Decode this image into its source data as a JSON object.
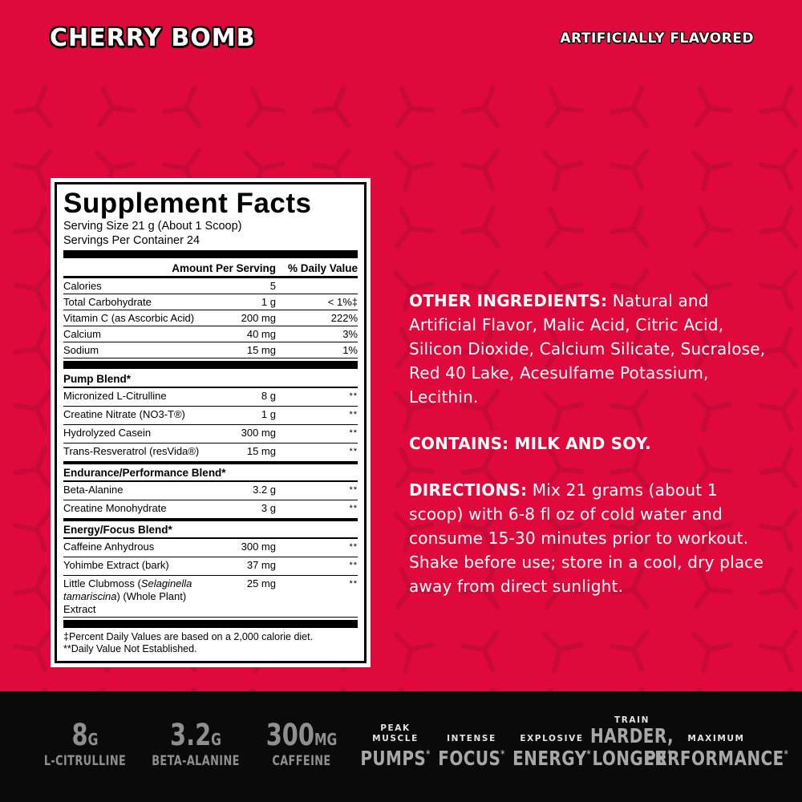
{
  "header": {
    "title": "CHERRY BOMB",
    "flavor_note": "ARTIFICIALLY FLAVORED"
  },
  "colors": {
    "background": "#e0093c",
    "pattern": "#c50a37",
    "black_bar": "#0a0a0a",
    "stat_text": "#8f8f8f",
    "claim_kicker": "#e3e3e3",
    "claim_word": "#a8a8a8"
  },
  "supplement_facts": {
    "title": "Supplement Facts",
    "serving_size": "Serving Size 21 g (About 1 Scoop)",
    "servings_per_container": "Servings Per Container 24",
    "col_amount": "Amount Per Serving",
    "col_dv": "% Daily Value",
    "rows": [
      {
        "type": "row",
        "name": "Calories",
        "amount": "5",
        "dv": ""
      },
      {
        "type": "row",
        "name": "Total Carbohydrate",
        "amount": "1 g",
        "dv": "< 1%‡"
      },
      {
        "type": "row",
        "name": "Vitamin C (as Ascorbic Acid)",
        "amount": "200 mg",
        "dv": "222%"
      },
      {
        "type": "row",
        "name": "Calcium",
        "amount": "40 mg",
        "dv": "3%"
      },
      {
        "type": "row",
        "name": "Sodium",
        "amount": "15 mg",
        "dv": "1%"
      },
      {
        "type": "bar"
      },
      {
        "type": "section",
        "name": "Pump Blend*",
        "after_bar": true
      },
      {
        "type": "row",
        "name": "Micronized L-Citrulline",
        "amount": "8 g",
        "dv": "**"
      },
      {
        "type": "row",
        "name": "Creatine Nitrate (NO3-T®)",
        "amount": "1 g",
        "dv": "**"
      },
      {
        "type": "row",
        "name": "Hydrolyzed Casein",
        "amount": "300 mg",
        "dv": "**"
      },
      {
        "type": "row",
        "name": "Trans-Resveratrol (resVida®)",
        "amount": "15 mg",
        "dv": "**"
      },
      {
        "type": "section",
        "name": "Endurance/Performance Blend*"
      },
      {
        "type": "row",
        "name": "Beta-Alanine",
        "amount": "3.2 g",
        "dv": "**"
      },
      {
        "type": "row",
        "name": "Creatine Monohydrate",
        "amount": "3 g",
        "dv": "**"
      },
      {
        "type": "section",
        "name": "Energy/Focus Blend*"
      },
      {
        "type": "row",
        "name": "Caffeine Anhydrous",
        "amount": "300 mg",
        "dv": "**"
      },
      {
        "type": "row",
        "name": "Yohimbe Extract (bark)",
        "amount": "37 mg",
        "dv": "**"
      },
      {
        "type": "row",
        "name": "Little Clubmoss (_Selaginella_ _tamariscina_) (Whole Plant) Extract",
        "amount": "25 mg",
        "dv": "**"
      },
      {
        "type": "bar"
      }
    ],
    "footnotes": [
      "‡Percent Daily Values are based on a 2,000 calorie diet.",
      "**Daily Value Not Established."
    ]
  },
  "info": {
    "other_ingredients_label": "OTHER INGREDIENTS:",
    "other_ingredients": " Natural and Artificial Flavor, Malic Acid, Citric Acid, Silicon Dioxide, Calcium Silicate, Sucralose, Red 40 Lake, Acesulfame Potassium, Lecithin.",
    "contains_line": "CONTAINS: MILK AND SOY.",
    "directions_label": "DIRECTIONS:",
    "directions": " Mix 21 grams (about 1 scoop) with 6-8 fl oz of cold water and consume 15-30 minutes prior to workout. Shake before use; store in a cool, dry place away from direct sunlight."
  },
  "bottom_bar": {
    "stats": [
      {
        "value": "8",
        "unit": "G",
        "label": "L-CITRULLINE"
      },
      {
        "value": "3.2",
        "unit": "G",
        "label": "BETA-ALANINE"
      },
      {
        "value": "300",
        "unit": "MG",
        "label": "CAFFEINE"
      }
    ],
    "claims": [
      {
        "kicker": "PEAK\nMUSCLE",
        "word": "PUMPS",
        "mark": "*"
      },
      {
        "kicker": "INTENSE",
        "word": "FOCUS",
        "mark": "*"
      },
      {
        "kicker": "EXPLOSIVE",
        "word": "ENERGY",
        "mark": "*"
      },
      {
        "kicker": "TRAIN",
        "word": "HARDER,\nLONGER",
        "mark": "*"
      },
      {
        "kicker": "MAXIMUM",
        "word": "PERFORMANCE",
        "mark": "*"
      }
    ]
  }
}
